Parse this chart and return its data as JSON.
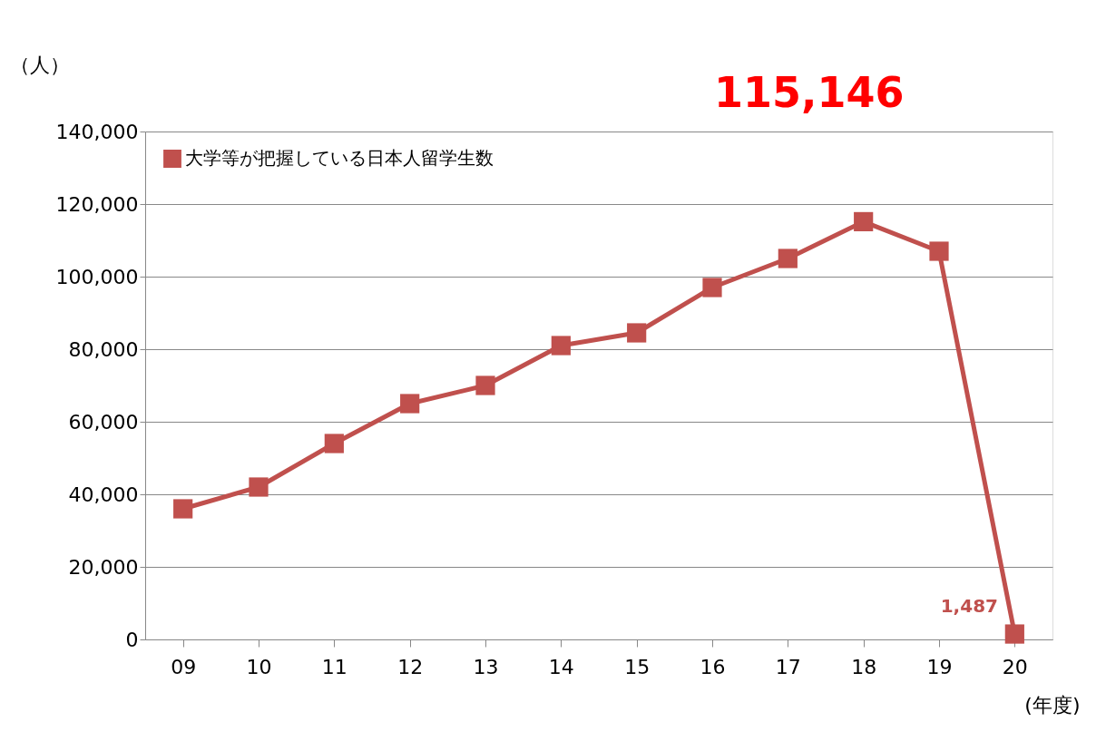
{
  "chart_data": {
    "type": "line",
    "ylabel": "（人）",
    "xlabel": "(年度)",
    "categories": [
      "09",
      "10",
      "11",
      "12",
      "13",
      "14",
      "15",
      "16",
      "17",
      "18",
      "19",
      "20"
    ],
    "series": [
      {
        "name": "大学等が把握している日本人留学生数",
        "color": "#c0504d",
        "values": [
          36000,
          42000,
          54000,
          65000,
          70000,
          81000,
          84500,
          97000,
          105000,
          115146,
          107000,
          1487
        ]
      }
    ],
    "ylim": [
      0,
      140000
    ],
    "yticks": [
      0,
      {
        "value": 20000,
        "label": "20,000"
      },
      {
        "value": 40000,
        "label": "40,000"
      },
      {
        "value": 60000,
        "label": "60,000"
      },
      {
        "value": 80000,
        "label": "80,000"
      },
      {
        "value": 100000,
        "label": "100,000"
      },
      {
        "value": 120000,
        "label": "120,000"
      },
      {
        "value": 140000,
        "label": "140,000"
      }
    ],
    "annotations": [
      {
        "text": "115,146",
        "x": "18",
        "y": 115146
      },
      {
        "text": "1,487",
        "x": "20",
        "y": 1487
      }
    ],
    "grid": "y",
    "legend": "top left",
    "marker": "square",
    "line_style": "solid"
  }
}
